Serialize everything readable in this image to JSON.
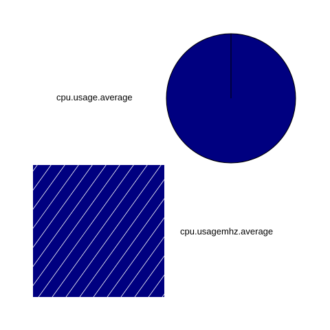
{
  "chart_data": [
    {
      "type": "pie",
      "label": "cpu.usage.average",
      "slices": [
        {
          "value": 1.0
        }
      ],
      "fill_color": "#000080",
      "border_color": "#000000"
    },
    {
      "type": "square-glyph",
      "label": "cpu.usagemhz.average",
      "fill_color": "#000080",
      "hatch_color": "#ffffff",
      "hatch": "diagonal"
    }
  ]
}
